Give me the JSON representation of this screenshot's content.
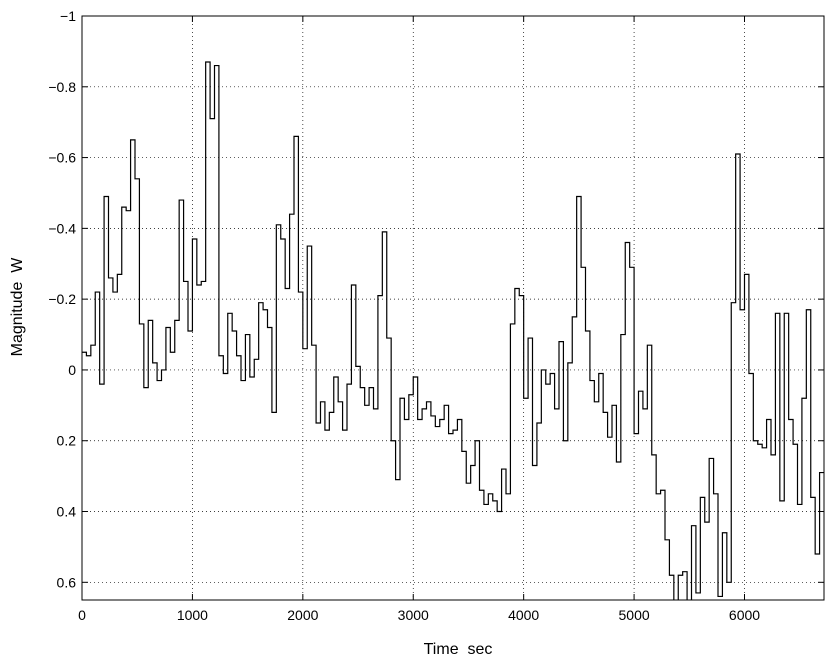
{
  "chart_data": {
    "type": "line",
    "title": "",
    "xlabel": "Time  sec",
    "ylabel": "Magnitude  W",
    "xlim": [
      0,
      6720
    ],
    "ylim": [
      -1.0,
      0.65
    ],
    "y_axis_reversed": true,
    "grid": true,
    "grid_style": "dotted",
    "line_style": "step",
    "line_color": "#000000",
    "x_ticks": [
      0,
      1000,
      2000,
      3000,
      4000,
      5000,
      6000
    ],
    "x_tick_labels": [
      "0",
      "1000",
      "2000",
      "3000",
      "4000",
      "5000",
      "6000"
    ],
    "y_ticks": [
      -1.0,
      -0.8,
      -0.6,
      -0.4,
      -0.2,
      0,
      0.2,
      0.4,
      0.6
    ],
    "y_tick_labels": [
      "−1",
      "−0.8",
      "−0.6",
      "−0.4",
      "−0.2",
      "0",
      "0.2",
      "0.4",
      "0.6"
    ],
    "series": [
      {
        "x": [
          0,
          40,
          80,
          120,
          160,
          200,
          240,
          280,
          320,
          360,
          400,
          440,
          480,
          520,
          560,
          600,
          640,
          680,
          720,
          760,
          800,
          840,
          880,
          920,
          960,
          1000,
          1040,
          1080,
          1120,
          1160,
          1200,
          1240,
          1280,
          1320,
          1360,
          1400,
          1440,
          1480,
          1520,
          1560,
          1600,
          1640,
          1680,
          1720,
          1760,
          1800,
          1840,
          1880,
          1920,
          1960,
          2000,
          2040,
          2080,
          2120,
          2160,
          2200,
          2240,
          2280,
          2320,
          2360,
          2400,
          2440,
          2480,
          2520,
          2560,
          2600,
          2640,
          2680,
          2720,
          2760,
          2800,
          2840,
          2880,
          2920,
          2960,
          3000,
          3040,
          3080,
          3120,
          3160,
          3200,
          3240,
          3280,
          3320,
          3360,
          3400,
          3440,
          3480,
          3520,
          3560,
          3600,
          3640,
          3680,
          3720,
          3760,
          3800,
          3840,
          3880,
          3920,
          3960,
          4000,
          4040,
          4080,
          4120,
          4160,
          4200,
          4240,
          4280,
          4320,
          4360,
          4400,
          4440,
          4480,
          4520,
          4560,
          4600,
          4640,
          4680,
          4720,
          4760,
          4800,
          4840,
          4880,
          4920,
          4960,
          5000,
          5040,
          5080,
          5120,
          5160,
          5200,
          5240,
          5280,
          5320,
          5360,
          5400,
          5440,
          5480,
          5520,
          5560,
          5600,
          5640,
          5680,
          5720,
          5760,
          5800,
          5840,
          5880,
          5920,
          5960,
          6000,
          6040,
          6080,
          6120,
          6160,
          6200,
          6240,
          6280,
          6320,
          6360,
          6400,
          6440,
          6480,
          6520,
          6560,
          6600,
          6640,
          6680
        ],
        "y": [
          -0.05,
          -0.04,
          -0.07,
          -0.22,
          0.04,
          -0.49,
          -0.26,
          -0.22,
          -0.27,
          -0.46,
          -0.45,
          -0.65,
          -0.54,
          -0.13,
          0.05,
          -0.14,
          -0.02,
          0.03,
          0.0,
          -0.12,
          -0.05,
          -0.14,
          -0.48,
          -0.25,
          -0.11,
          -0.37,
          -0.24,
          -0.25,
          -0.87,
          -0.71,
          -0.86,
          -0.04,
          0.01,
          -0.16,
          -0.11,
          -0.04,
          0.03,
          -0.1,
          0.02,
          -0.03,
          -0.19,
          -0.17,
          -0.12,
          0.12,
          -0.41,
          -0.37,
          -0.23,
          -0.44,
          -0.66,
          -0.22,
          -0.06,
          -0.35,
          -0.07,
          0.15,
          0.09,
          0.17,
          0.12,
          0.02,
          0.09,
          0.17,
          0.04,
          -0.24,
          -0.01,
          0.05,
          0.1,
          0.05,
          0.11,
          -0.21,
          -0.39,
          -0.09,
          0.2,
          0.31,
          0.08,
          0.14,
          0.07,
          0.02,
          0.14,
          0.11,
          0.09,
          0.13,
          0.16,
          0.14,
          0.1,
          0.18,
          0.17,
          0.14,
          0.23,
          0.32,
          0.27,
          0.2,
          0.34,
          0.38,
          0.35,
          0.37,
          0.4,
          0.28,
          0.35,
          -0.13,
          -0.23,
          -0.21,
          0.08,
          -0.09,
          0.27,
          0.15,
          0.0,
          0.04,
          0.01,
          0.11,
          -0.08,
          0.2,
          -0.02,
          -0.15,
          -0.49,
          -0.29,
          -0.11,
          0.03,
          0.09,
          0.01,
          0.12,
          0.19,
          0.1,
          0.26,
          -0.1,
          -0.36,
          -0.29,
          0.18,
          0.06,
          0.11,
          -0.07,
          0.24,
          0.35,
          0.34,
          0.48,
          0.58,
          0.77,
          0.58,
          0.57,
          0.67,
          0.44,
          0.63,
          0.36,
          0.43,
          0.25,
          0.35,
          0.64,
          0.46,
          0.6,
          -0.19,
          -0.61,
          -0.17,
          -0.27,
          0.01,
          0.2,
          0.21,
          0.22,
          0.14,
          0.24,
          -0.16,
          0.37,
          -0.16,
          0.14,
          0.21,
          0.38,
          0.08,
          -0.17,
          0.36,
          0.52,
          0.29
        ],
        "color": "#000000"
      }
    ]
  }
}
